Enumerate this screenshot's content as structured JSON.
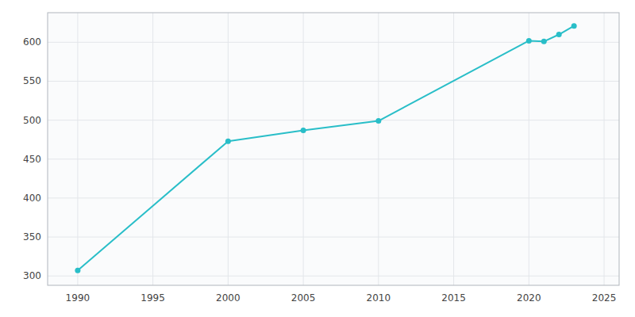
{
  "chart_data": {
    "type": "line",
    "x": [
      1990,
      2000,
      2005,
      2010,
      2020,
      2021,
      2022,
      2023
    ],
    "values": [
      307,
      473,
      487,
      499,
      602,
      601,
      610,
      621
    ],
    "color": "#29bec8",
    "marker": "circle",
    "xlim": [
      1988,
      2026
    ],
    "ylim": [
      288,
      638
    ],
    "xticks": [
      1990,
      1995,
      2000,
      2005,
      2010,
      2015,
      2020,
      2025
    ],
    "yticks": [
      300,
      350,
      400,
      450,
      500,
      550,
      600
    ],
    "grid": true
  }
}
